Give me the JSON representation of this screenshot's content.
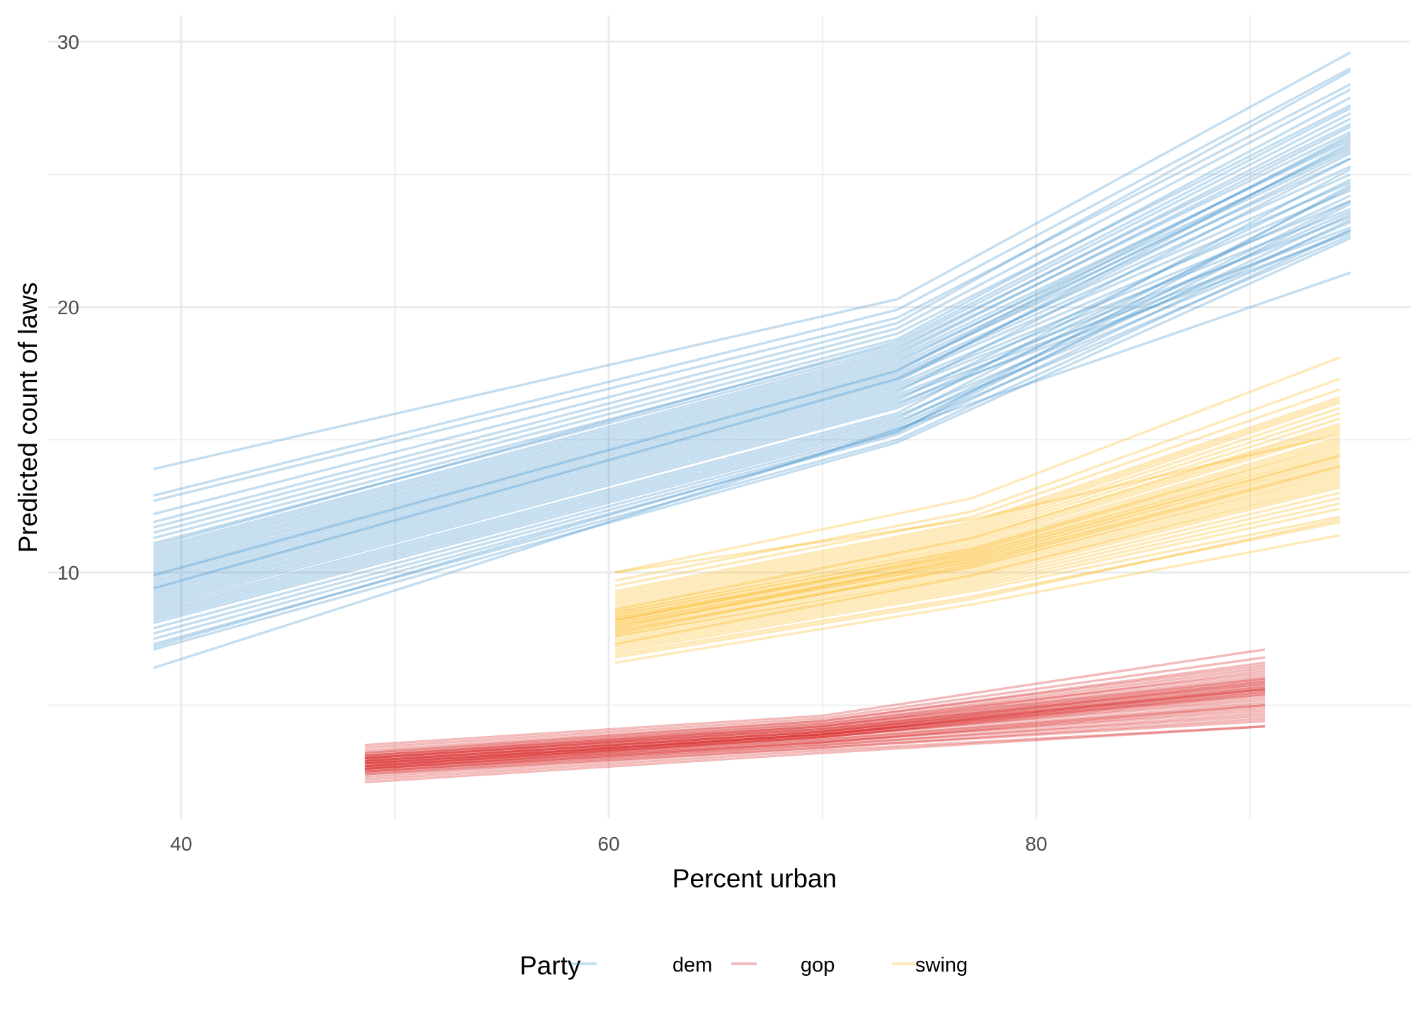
{
  "chart_data": {
    "type": "line",
    "title": "",
    "xlabel": "Percent urban",
    "ylabel": "Predicted count of laws",
    "xlim": [
      35.7,
      97.5
    ],
    "ylim": [
      1.0,
      31.0
    ],
    "x_ticks": [
      40,
      60,
      80
    ],
    "x_tick_labels": [
      "40",
      "60",
      "80"
    ],
    "x_minor": [
      50,
      70,
      90
    ],
    "y_ticks": [
      10,
      20,
      30
    ],
    "y_tick_labels": [
      "10",
      "20",
      "30"
    ],
    "y_minor": [
      5,
      15,
      25
    ],
    "grid": true,
    "legend": {
      "title": "Party",
      "placement": "bottom",
      "entries": [
        {
          "label": "dem",
          "color": "#3a8fc9"
        },
        {
          "label": "gop",
          "color": "#d7191c"
        },
        {
          "label": "swing",
          "color": "#fbb614"
        }
      ]
    },
    "series": [
      {
        "name": "dem",
        "color": "#3a8fc9",
        "x": [
          38.7,
          73.5,
          94.7
        ],
        "lines": [
          [
            13.9,
            20.3,
            29.6
          ],
          [
            12.9,
            19.9,
            29.0
          ],
          [
            12.7,
            19.6,
            28.4
          ],
          [
            12.2,
            19.4,
            28.9
          ],
          [
            11.9,
            19.2,
            28.2
          ],
          [
            11.7,
            19.0,
            27.6
          ],
          [
            11.5,
            18.8,
            27.9
          ],
          [
            11.3,
            18.6,
            27.3
          ],
          [
            11.1,
            18.5,
            26.9
          ],
          [
            10.9,
            18.4,
            27.1
          ],
          [
            10.8,
            18.3,
            26.6
          ],
          [
            10.6,
            18.1,
            26.3
          ],
          [
            10.5,
            18.0,
            26.0
          ],
          [
            10.4,
            17.9,
            26.4
          ],
          [
            10.3,
            17.8,
            25.9
          ],
          [
            10.2,
            17.7,
            25.6
          ],
          [
            10.1,
            17.6,
            26.1
          ],
          [
            10.0,
            17.5,
            25.3
          ],
          [
            9.9,
            17.4,
            25.0
          ],
          [
            9.8,
            17.3,
            24.7
          ],
          [
            9.7,
            17.2,
            26.2
          ],
          [
            9.6,
            17.1,
            24.4
          ],
          [
            9.5,
            17.0,
            24.0
          ],
          [
            9.4,
            16.9,
            23.7
          ],
          [
            9.3,
            16.8,
            25.6
          ],
          [
            9.2,
            16.7,
            23.4
          ],
          [
            9.1,
            16.6,
            23.0
          ],
          [
            9.0,
            16.5,
            24.8
          ],
          [
            8.9,
            16.4,
            22.8
          ],
          [
            8.8,
            16.3,
            24.2
          ],
          [
            8.7,
            16.2,
            23.6
          ],
          [
            8.6,
            16.0,
            25.2
          ],
          [
            8.5,
            15.9,
            23.2
          ],
          [
            8.4,
            15.8,
            24.5
          ],
          [
            8.3,
            15.7,
            22.9
          ],
          [
            8.2,
            15.6,
            24.0
          ],
          [
            8.1,
            15.5,
            23.5
          ],
          [
            7.9,
            15.4,
            22.7
          ],
          [
            7.7,
            15.3,
            23.9
          ],
          [
            7.5,
            15.2,
            23.3
          ],
          [
            7.3,
            15.0,
            22.9
          ],
          [
            7.2,
            15.3,
            24.6
          ],
          [
            7.1,
            14.9,
            22.6
          ],
          [
            6.4,
            15.4,
            21.3
          ],
          [
            11.0,
            18.7,
            27.5
          ],
          [
            10.7,
            18.2,
            26.8
          ],
          [
            9.9,
            17.6,
            26.5
          ],
          [
            9.4,
            17.3,
            25.8
          ]
        ]
      },
      {
        "name": "swing",
        "color": "#fbb614",
        "x": [
          60.3,
          77.0,
          94.2
        ],
        "lines": [
          [
            10.0,
            12.8,
            18.1
          ],
          [
            9.7,
            12.3,
            17.3
          ],
          [
            9.5,
            12.1,
            16.9
          ],
          [
            9.3,
            11.9,
            16.6
          ],
          [
            9.1,
            11.7,
            16.4
          ],
          [
            9.0,
            11.6,
            16.2
          ],
          [
            8.9,
            11.5,
            16.0
          ],
          [
            8.8,
            11.4,
            15.8
          ],
          [
            8.7,
            11.3,
            15.6
          ],
          [
            8.6,
            11.2,
            15.4
          ],
          [
            8.5,
            11.1,
            15.3
          ],
          [
            8.5,
            11.0,
            15.1
          ],
          [
            8.4,
            10.9,
            15.0
          ],
          [
            8.4,
            10.9,
            14.8
          ],
          [
            8.3,
            10.8,
            14.7
          ],
          [
            8.3,
            10.7,
            14.6
          ],
          [
            8.2,
            10.7,
            14.5
          ],
          [
            8.2,
            10.6,
            14.4
          ],
          [
            8.1,
            10.5,
            14.3
          ],
          [
            8.1,
            10.5,
            14.2
          ],
          [
            8.0,
            10.4,
            14.1
          ],
          [
            8.0,
            10.4,
            14.0
          ],
          [
            7.9,
            10.3,
            13.9
          ],
          [
            7.8,
            10.2,
            13.8
          ],
          [
            7.8,
            10.2,
            13.7
          ],
          [
            7.7,
            10.1,
            13.6
          ],
          [
            7.6,
            10.0,
            13.5
          ],
          [
            7.6,
            9.9,
            13.4
          ],
          [
            7.5,
            9.8,
            13.2
          ],
          [
            7.4,
            9.7,
            13.0
          ],
          [
            7.3,
            9.6,
            12.8
          ],
          [
            7.2,
            9.5,
            12.6
          ],
          [
            7.1,
            9.4,
            12.4
          ],
          [
            7.0,
            9.3,
            12.1
          ],
          [
            6.9,
            9.1,
            11.9
          ],
          [
            6.8,
            9.0,
            12.0
          ],
          [
            6.6,
            8.8,
            11.4
          ],
          [
            9.2,
            11.8,
            16.5
          ],
          [
            8.6,
            11.3,
            15.5
          ],
          [
            8.2,
            10.8,
            14.9
          ],
          [
            7.9,
            10.6,
            14.4
          ],
          [
            7.7,
            10.3,
            14.0
          ],
          [
            10.0,
            12.0,
            15.2
          ],
          [
            7.3,
            9.9,
            13.3
          ]
        ]
      },
      {
        "name": "gop",
        "color": "#d7191c",
        "x": [
          48.6,
          70.0,
          90.7
        ],
        "lines": [
          [
            3.5,
            4.6,
            7.1
          ],
          [
            3.4,
            4.5,
            6.8
          ],
          [
            3.3,
            4.4,
            6.6
          ],
          [
            3.2,
            4.4,
            6.5
          ],
          [
            3.2,
            4.3,
            6.4
          ],
          [
            3.1,
            4.3,
            6.2
          ],
          [
            3.1,
            4.2,
            6.1
          ],
          [
            3.0,
            4.2,
            6.0
          ],
          [
            3.0,
            4.1,
            5.9
          ],
          [
            3.0,
            4.1,
            5.8
          ],
          [
            2.9,
            4.0,
            5.8
          ],
          [
            2.9,
            4.0,
            5.7
          ],
          [
            2.9,
            4.0,
            5.6
          ],
          [
            2.8,
            3.9,
            5.6
          ],
          [
            2.8,
            3.9,
            5.5
          ],
          [
            2.8,
            3.9,
            5.4
          ],
          [
            2.7,
            3.8,
            5.4
          ],
          [
            2.7,
            3.8,
            5.3
          ],
          [
            2.7,
            3.8,
            5.2
          ],
          [
            2.6,
            3.7,
            5.1
          ],
          [
            2.6,
            3.7,
            5.0
          ],
          [
            2.6,
            3.6,
            4.9
          ],
          [
            2.5,
            3.6,
            4.8
          ],
          [
            2.5,
            3.5,
            4.7
          ],
          [
            2.4,
            3.5,
            4.6
          ],
          [
            2.4,
            3.4,
            4.5
          ],
          [
            2.3,
            3.4,
            4.4
          ],
          [
            2.2,
            3.3,
            4.2
          ],
          [
            2.1,
            3.2,
            4.2
          ],
          [
            3.0,
            4.1,
            6.0
          ],
          [
            2.9,
            4.0,
            5.9
          ],
          [
            2.8,
            3.9,
            5.7
          ],
          [
            2.7,
            3.9,
            5.6
          ],
          [
            2.6,
            3.8,
            5.5
          ],
          [
            3.1,
            4.2,
            6.3
          ],
          [
            2.5,
            3.6,
            5.0
          ]
        ]
      }
    ]
  }
}
